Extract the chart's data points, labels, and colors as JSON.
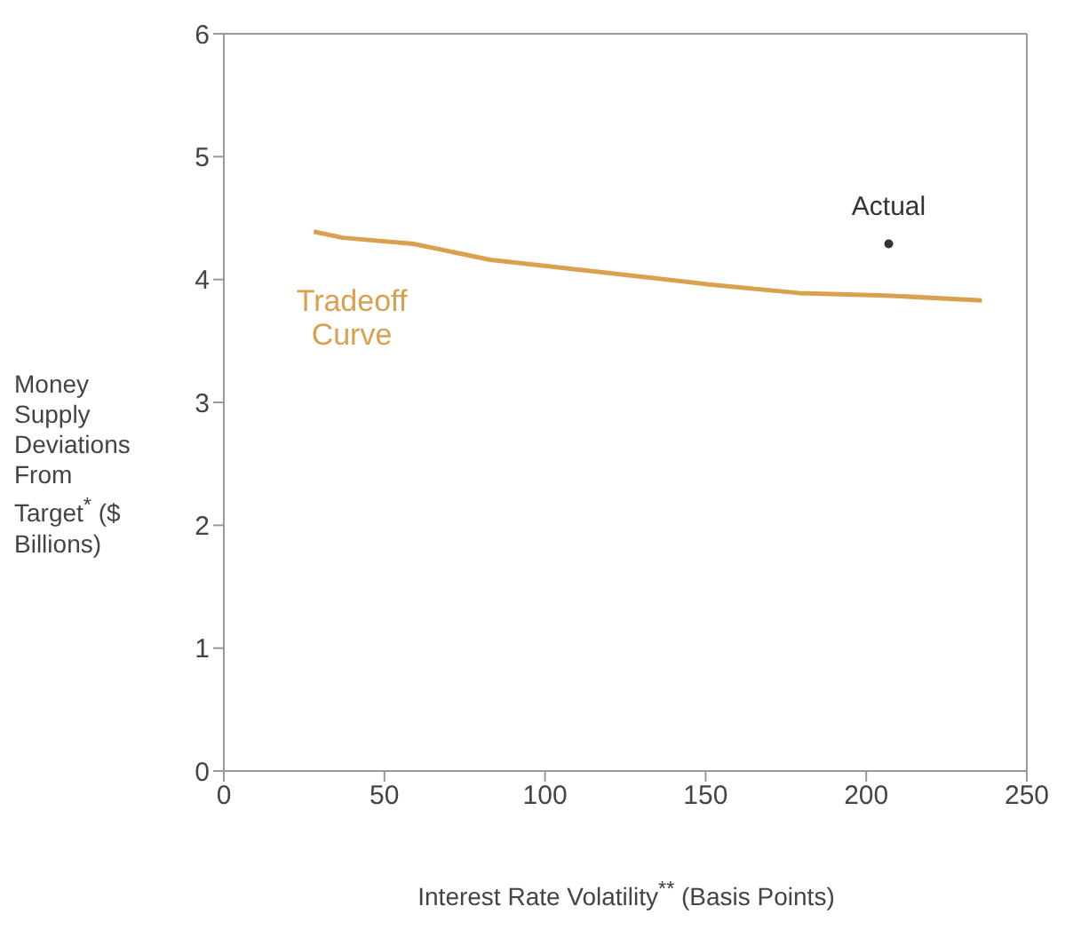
{
  "chart_data": {
    "type": "line",
    "xlabel": "Interest Rate Volatility$^{**}$ (Basis Points)",
    "ylabel": "Money Supply Deviations From Target$^{*}$ ($ Billions)",
    "xlim": [
      0,
      250
    ],
    "xticks": [
      0,
      50,
      100,
      150,
      200,
      250
    ],
    "ylim": [
      0,
      6
    ],
    "yticks": [
      0,
      1,
      2,
      3,
      4,
      5,
      6
    ],
    "series": [
      {
        "name": "Tradeoff Curve",
        "color": "#d9a04f",
        "x": [
          28,
          37,
          59,
          83,
          114,
          151,
          179,
          206,
          236
        ],
        "values": [
          4.39,
          4.34,
          4.29,
          4.16,
          4.07,
          3.96,
          3.89,
          3.87,
          3.83
        ]
      },
      {
        "name": "Actual",
        "type": "scatter",
        "color": "#333333",
        "x": [
          207
        ],
        "values": [
          4.29
        ]
      }
    ]
  }
}
